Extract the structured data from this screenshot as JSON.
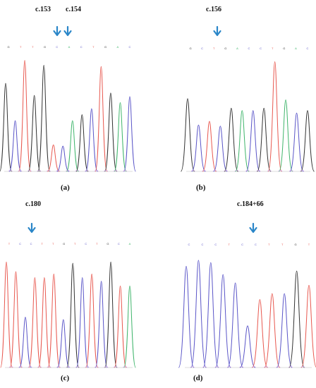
{
  "colors": {
    "A": "#3fb56b",
    "C": "#5a55c8",
    "G": "#333333",
    "T": "#e8584f",
    "arrow": "#2a86c8"
  },
  "panels": [
    {
      "caption": "(a)",
      "markers": [
        "c.153",
        "c.154"
      ],
      "bases": [
        "G",
        "T",
        "T",
        "G",
        "C",
        "A",
        "C",
        "T",
        "G",
        "A",
        "C"
      ],
      "peaks": [
        {
          "base": "G",
          "h": 0.73
        },
        {
          "base": "C",
          "h": 0.42
        },
        {
          "base": "T",
          "h": 0.92
        },
        {
          "base": "G",
          "h": 0.63
        },
        {
          "base": "G",
          "h": 0.88
        },
        {
          "base": "T",
          "h": 0.22
        },
        {
          "base": "C",
          "h": 0.21
        },
        {
          "base": "A",
          "h": 0.42
        },
        {
          "base": "G",
          "h": 0.47
        },
        {
          "base": "C",
          "h": 0.52
        },
        {
          "base": "T",
          "h": 0.87
        },
        {
          "base": "G",
          "h": 0.65
        },
        {
          "base": "A",
          "h": 0.57
        },
        {
          "base": "C",
          "h": 0.62
        }
      ]
    },
    {
      "caption": "(b)",
      "markers": [
        "c.156"
      ],
      "bases": [
        "G",
        "C",
        "T",
        "G",
        "A",
        "C",
        "C",
        "T",
        "G",
        "A",
        "C"
      ],
      "peaks": [
        {
          "base": "G",
          "h": 0.61
        },
        {
          "base": "C",
          "h": 0.39
        },
        {
          "base": "T",
          "h": 0.42
        },
        {
          "base": "C",
          "h": 0.38
        },
        {
          "base": "G",
          "h": 0.53
        },
        {
          "base": "A",
          "h": 0.51
        },
        {
          "base": "C",
          "h": 0.51
        },
        {
          "base": "G",
          "h": 0.53
        },
        {
          "base": "T",
          "h": 0.92
        },
        {
          "base": "A",
          "h": 0.6
        },
        {
          "base": "C",
          "h": 0.49
        },
        {
          "base": "G",
          "h": 0.51
        }
      ]
    },
    {
      "caption": "(c)",
      "markers": [
        "c.180"
      ],
      "bases": [
        "T",
        "C",
        "C",
        "T",
        "T",
        "G",
        "T",
        "C",
        "T",
        "G",
        "C",
        "A"
      ],
      "peaks": [
        {
          "base": "T",
          "h": 0.88
        },
        {
          "base": "T",
          "h": 0.8
        },
        {
          "base": "C",
          "h": 0.42
        },
        {
          "base": "T",
          "h": 0.75
        },
        {
          "base": "T",
          "h": 0.75
        },
        {
          "base": "T",
          "h": 0.78
        },
        {
          "base": "C",
          "h": 0.4
        },
        {
          "base": "G",
          "h": 0.87
        },
        {
          "base": "C",
          "h": 0.75
        },
        {
          "base": "T",
          "h": 0.78
        },
        {
          "base": "C",
          "h": 0.72
        },
        {
          "base": "G",
          "h": 0.88
        },
        {
          "base": "T",
          "h": 0.68
        },
        {
          "base": "A",
          "h": 0.68
        }
      ]
    },
    {
      "caption": "(d)",
      "markers": [
        "c.184+66"
      ],
      "bases": [
        "C",
        "C",
        "C",
        "T",
        "C",
        "C",
        "T",
        "T",
        "G",
        "T"
      ],
      "peaks": [
        {
          "base": "C",
          "h": 0.85
        },
        {
          "base": "C",
          "h": 0.9
        },
        {
          "base": "C",
          "h": 0.88
        },
        {
          "base": "C",
          "h": 0.78
        },
        {
          "base": "C",
          "h": 0.71
        },
        {
          "base": "C",
          "h": 0.35
        },
        {
          "base": "T",
          "h": 0.57
        },
        {
          "base": "T",
          "h": 0.62
        },
        {
          "base": "C",
          "h": 0.62
        },
        {
          "base": "G",
          "h": 0.81
        },
        {
          "base": "T",
          "h": 0.69
        }
      ]
    }
  ]
}
